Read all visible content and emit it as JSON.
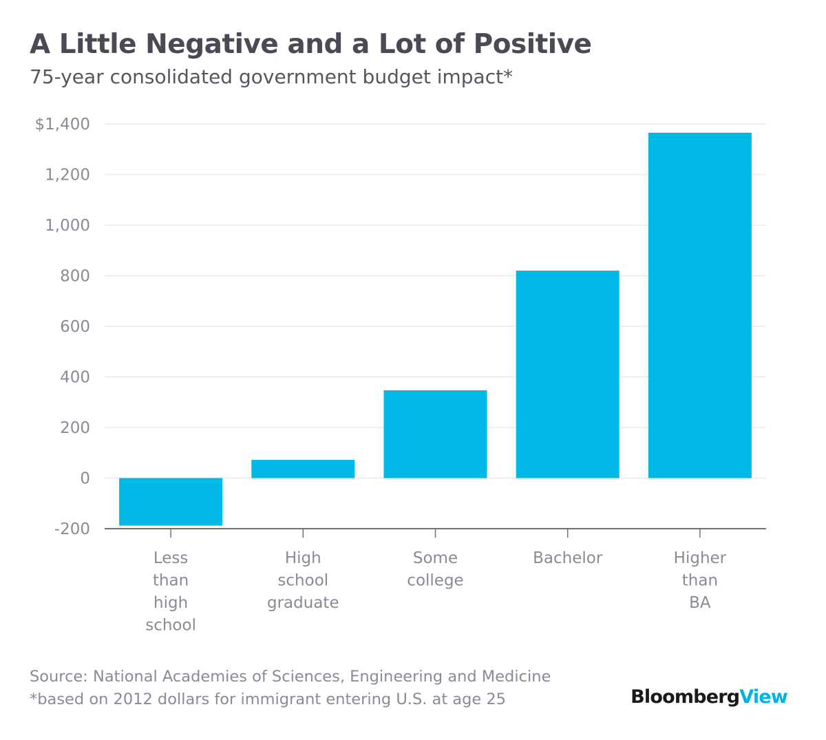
{
  "chart_data": {
    "type": "bar",
    "title": "A Little Negative and a Lot of Positive",
    "subtitle": "75-year consolidated government budget impact*",
    "categories": [
      [
        "Less",
        "than",
        "high",
        "school"
      ],
      [
        "High",
        "school",
        "graduate"
      ],
      [
        "Some",
        "college"
      ],
      [
        "Bachelor"
      ],
      [
        "Higher",
        "than",
        "BA"
      ]
    ],
    "values": [
      -188,
      72,
      347,
      820,
      1365
    ],
    "ylim": [
      -200,
      1400
    ],
    "yticks": [
      -200,
      0,
      200,
      400,
      600,
      800,
      1000,
      1200,
      1400
    ],
    "ytick_labels": [
      "-200",
      "0",
      "200",
      "400",
      "600",
      "800",
      "1,000",
      "1,200",
      "$1,400"
    ],
    "grid": true,
    "bar_color": "#00b7e5",
    "xlabel": "",
    "ylabel": ""
  },
  "footer": {
    "source": "Source: National Academies of Sciences, Engineering and Medicine",
    "note": "*based on 2012 dollars for immigrant entering U.S. at age 25"
  },
  "brand": {
    "name_part1": "Bloomberg",
    "name_part2": "View",
    "accent_color": "#00b3e3"
  }
}
